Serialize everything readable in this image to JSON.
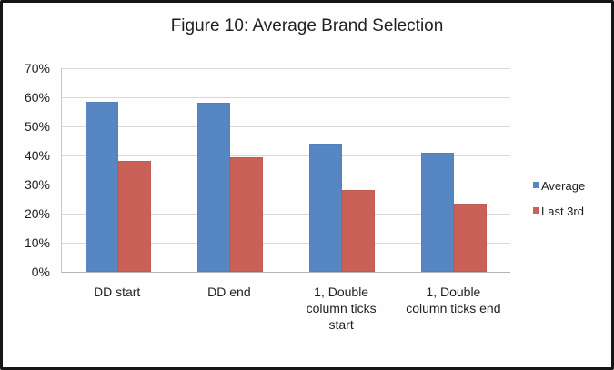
{
  "chart_data": {
    "type": "bar",
    "title": "Figure 10: Average Brand Selection",
    "categories": [
      "DD start",
      "DD end",
      "1, Double column ticks start",
      "1, Double column ticks end"
    ],
    "category_lines": [
      [
        "DD start"
      ],
      [
        "DD end"
      ],
      [
        "1, Double",
        "column ticks",
        "start"
      ],
      [
        "1, Double",
        "column ticks end"
      ]
    ],
    "series": [
      {
        "name": "Average",
        "color": "#5787c3",
        "values": [
          58.5,
          58,
          44,
          41
        ]
      },
      {
        "name": "Last 3rd",
        "color": "#c96159",
        "values": [
          38,
          39.5,
          28,
          23.5
        ]
      }
    ],
    "xlabel": "",
    "ylabel": "",
    "ylim": [
      0,
      70
    ],
    "ytick_step": 10,
    "ytick_labels": [
      "0%",
      "10%",
      "20%",
      "30%",
      "40%",
      "50%",
      "60%",
      "70%"
    ],
    "grid": true,
    "legend_position": "right"
  },
  "style": {
    "grid_color": "#d9d9d9",
    "axis_color": "#b5b5b5",
    "text_color": "#1f1f1f",
    "frame_border_color": "#161616",
    "background": "#fefefe"
  }
}
